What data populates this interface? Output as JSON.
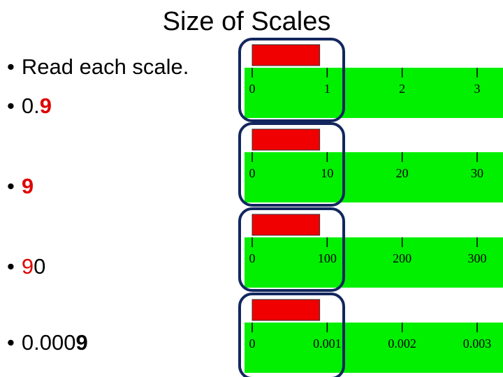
{
  "title": "Size of Scales",
  "bullets": [
    {
      "parts": [
        {
          "text": "Read each scale."
        }
      ]
    },
    {
      "parts": [
        {
          "text": "0."
        },
        {
          "text": "9",
          "color": "#e00000",
          "bold": true
        }
      ]
    },
    {
      "parts": [
        {
          "text": "9",
          "color": "#e00000",
          "bold": true
        }
      ]
    },
    {
      "parts": [
        {
          "text": "9",
          "color": "#e00000"
        },
        {
          "text": "0"
        }
      ]
    },
    {
      "parts": [
        {
          "text": "0.000"
        },
        {
          "text": "9",
          "bold": true
        }
      ]
    }
  ],
  "scales": [
    {
      "ticks": [
        0,
        1,
        2,
        3
      ],
      "reading": 0.9
    },
    {
      "ticks": [
        0,
        10,
        20,
        30
      ],
      "reading": 9
    },
    {
      "ticks": [
        0,
        100,
        200,
        300
      ],
      "reading": 90
    },
    {
      "ticks": [
        0,
        0.001,
        0.002,
        0.003
      ],
      "reading": 0.0009
    }
  ],
  "scale_color": "#00f000",
  "reading_color": "#f00000",
  "frame_color": "#13275e"
}
